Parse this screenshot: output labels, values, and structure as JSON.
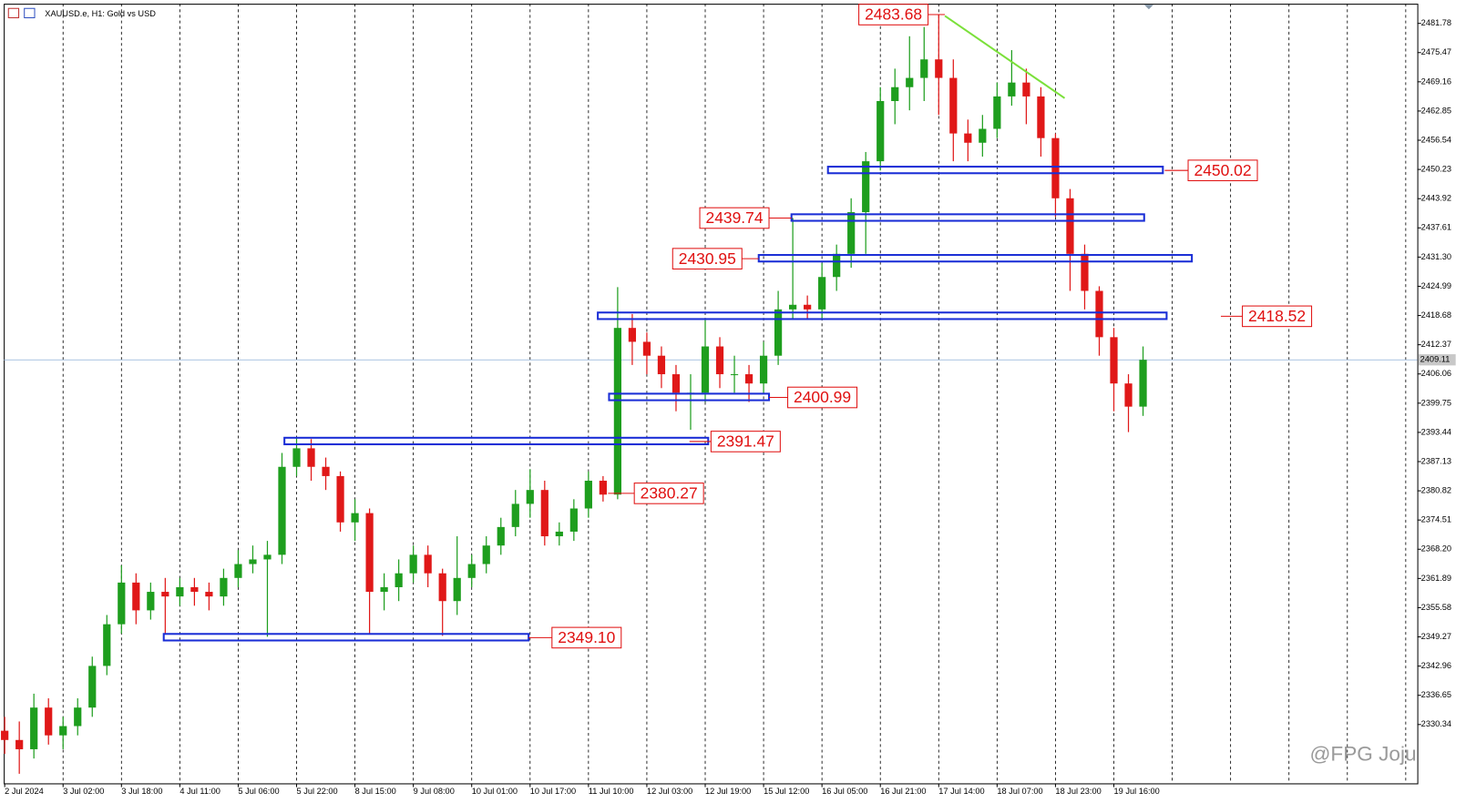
{
  "chart_data": {
    "type": "candlestick",
    "title": "XAUUSD.e, H1:  Gold vs USD",
    "watermark": "@FPG Joju",
    "categories": [
      "2 Jul 2024",
      null,
      null,
      null,
      "3 Jul 02:00",
      null,
      null,
      null,
      "3 Jul 18:00",
      null,
      null,
      null,
      "4 Jul 11:00",
      null,
      null,
      null,
      "5 Jul 06:00",
      null,
      null,
      null,
      "5 Jul 22:00",
      null,
      null,
      null,
      "8 Jul 15:00",
      null,
      null,
      null,
      "9 Jul 08:00",
      null,
      null,
      null,
      "10 Jul 01:00",
      null,
      null,
      null,
      "10 Jul 17:00",
      null,
      null,
      null,
      "11 Jul 10:00",
      null,
      null,
      null,
      "12 Jul 03:00",
      null,
      null,
      null,
      "12 Jul 19:00",
      null,
      null,
      null,
      "15 Jul 12:00",
      null,
      null,
      null,
      "16 Jul 05:00",
      null,
      null,
      null,
      "16 Jul 21:00",
      null,
      null,
      null,
      "17 Jul 14:00",
      null,
      null,
      null,
      "18 Jul 07:00",
      null,
      null,
      null,
      "18 Jul 23:00",
      null,
      null,
      null,
      "19 Jul 16:00",
      null,
      null
    ],
    "open": [
      2329,
      2327,
      2325,
      2334,
      2328,
      2330,
      2334,
      2343,
      2352,
      2361,
      2355,
      2359,
      2358,
      2360,
      2359,
      2358,
      2362,
      2365,
      2366,
      2367,
      2386,
      2390,
      2386,
      2384,
      2374,
      2376,
      2359,
      2360,
      2363,
      2367,
      2363,
      2357,
      2362,
      2365,
      2369,
      2373,
      2378,
      2381,
      2371,
      2372,
      2377,
      2383,
      2380,
      2416,
      2413,
      2410,
      2406,
      2402,
      2402,
      2412,
      2406,
      2406,
      2404,
      2410,
      2420,
      2421,
      2420,
      2427,
      2432,
      2441,
      2452,
      2465,
      2468,
      2470,
      2474,
      2470,
      2458,
      2456,
      2459,
      2466,
      2469,
      2466,
      2457,
      2444,
      2432,
      2424,
      2414,
      2404,
      2399
    ],
    "high": [
      2332,
      2331,
      2337,
      2336,
      2332,
      2336,
      2345,
      2354,
      2364.7,
      2363,
      2361,
      2362,
      2362,
      2362,
      2361,
      2364,
      2368,
      2369,
      2370,
      2389,
      2392.4,
      2392,
      2388,
      2385,
      2379,
      2377,
      2363,
      2366,
      2369,
      2369,
      2364,
      2371,
      2367,
      2371,
      2375,
      2381,
      2385.5,
      2383,
      2374,
      2379,
      2385,
      2384,
      2424.8,
      2419,
      2415,
      2412,
      2408,
      2406,
      2418,
      2414,
      2410,
      2408,
      2413,
      2424,
      2439.74,
      2423,
      2430,
      2434,
      2444,
      2454,
      2468,
      2472,
      2479,
      2481,
      2483.68,
      2474,
      2461,
      2462,
      2469,
      2476,
      2472,
      2468,
      2458,
      2446,
      2434,
      2425,
      2416,
      2406,
      2412
    ],
    "low": [
      2324,
      2319.7,
      2323,
      2326,
      2325,
      2328,
      2332,
      2341,
      2350,
      2352,
      2353,
      2350,
      2356,
      2356,
      2355,
      2356,
      2360,
      2363,
      2349.3,
      2365,
      2384,
      2383,
      2381,
      2372,
      2370,
      2350,
      2355,
      2357,
      2361,
      2360,
      2349.5,
      2354,
      2360,
      2363,
      2367,
      2371,
      2375,
      2369,
      2369,
      2370,
      2375,
      2378.5,
      2379,
      2408,
      2406,
      2403,
      2398,
      2394,
      2400,
      2403,
      2402,
      2400,
      2402,
      2408,
      2418,
      2418,
      2418,
      2424,
      2429,
      2432,
      2450,
      2460,
      2463,
      2465,
      2462,
      2452,
      2452,
      2453,
      2457,
      2464,
      2460,
      2453,
      2440,
      2424,
      2420,
      2410,
      2398,
      2393.5,
      2397
    ],
    "close": [
      2327,
      2325,
      2334,
      2328,
      2330,
      2334,
      2343,
      2352,
      2361,
      2355,
      2359,
      2358,
      2360,
      2359,
      2358,
      2362,
      2365,
      2366,
      2367,
      2386,
      2390,
      2386,
      2384,
      2374,
      2376,
      2359,
      2360,
      2363,
      2367,
      2363,
      2357,
      2362,
      2365,
      2369,
      2373,
      2378,
      2381,
      2371,
      2372,
      2377,
      2383,
      2380,
      2416,
      2413,
      2410,
      2406,
      2402,
      2402,
      2412,
      2406,
      2406,
      2404,
      2410,
      2420,
      2421,
      2420,
      2427,
      2432,
      2441,
      2452,
      2465,
      2468,
      2470,
      2474,
      2470,
      2458,
      2456,
      2459,
      2466,
      2469,
      2466,
      2457,
      2444,
      2432,
      2424,
      2414,
      2404,
      2399,
      2409.11
    ],
    "up_color": "#1e9e1e",
    "down_color": "#e01818",
    "level_color": "#1a2ed6",
    "label_color": "#e01010",
    "trend_color": "#7be03a",
    "current_price": 2409.11,
    "levels": [
      2483.68,
      2450.02,
      2439.74,
      2430.95,
      2418.52,
      2400.99,
      2391.47,
      2380.27,
      {
        "value": 2349.1,
        "label": "2349.10"
      }
    ],
    "ylim": [
      2317.63,
      2486.02
    ],
    "yticks": [
      2481.78,
      2475.47,
      2469.16,
      2462.85,
      2456.54,
      2450.23,
      2443.92,
      2437.61,
      {
        "value": 2431.3,
        "label": "2431.30"
      },
      2424.99,
      2418.68,
      2412.37,
      2406.06,
      2399.75,
      2393.44,
      2387.13,
      2380.82,
      2374.51,
      {
        "value": 2368.2,
        "label": "2368.20"
      },
      2361.89,
      2355.58,
      2349.27,
      2342.96,
      2336.65,
      2330.34
    ],
    "grid": true
  }
}
